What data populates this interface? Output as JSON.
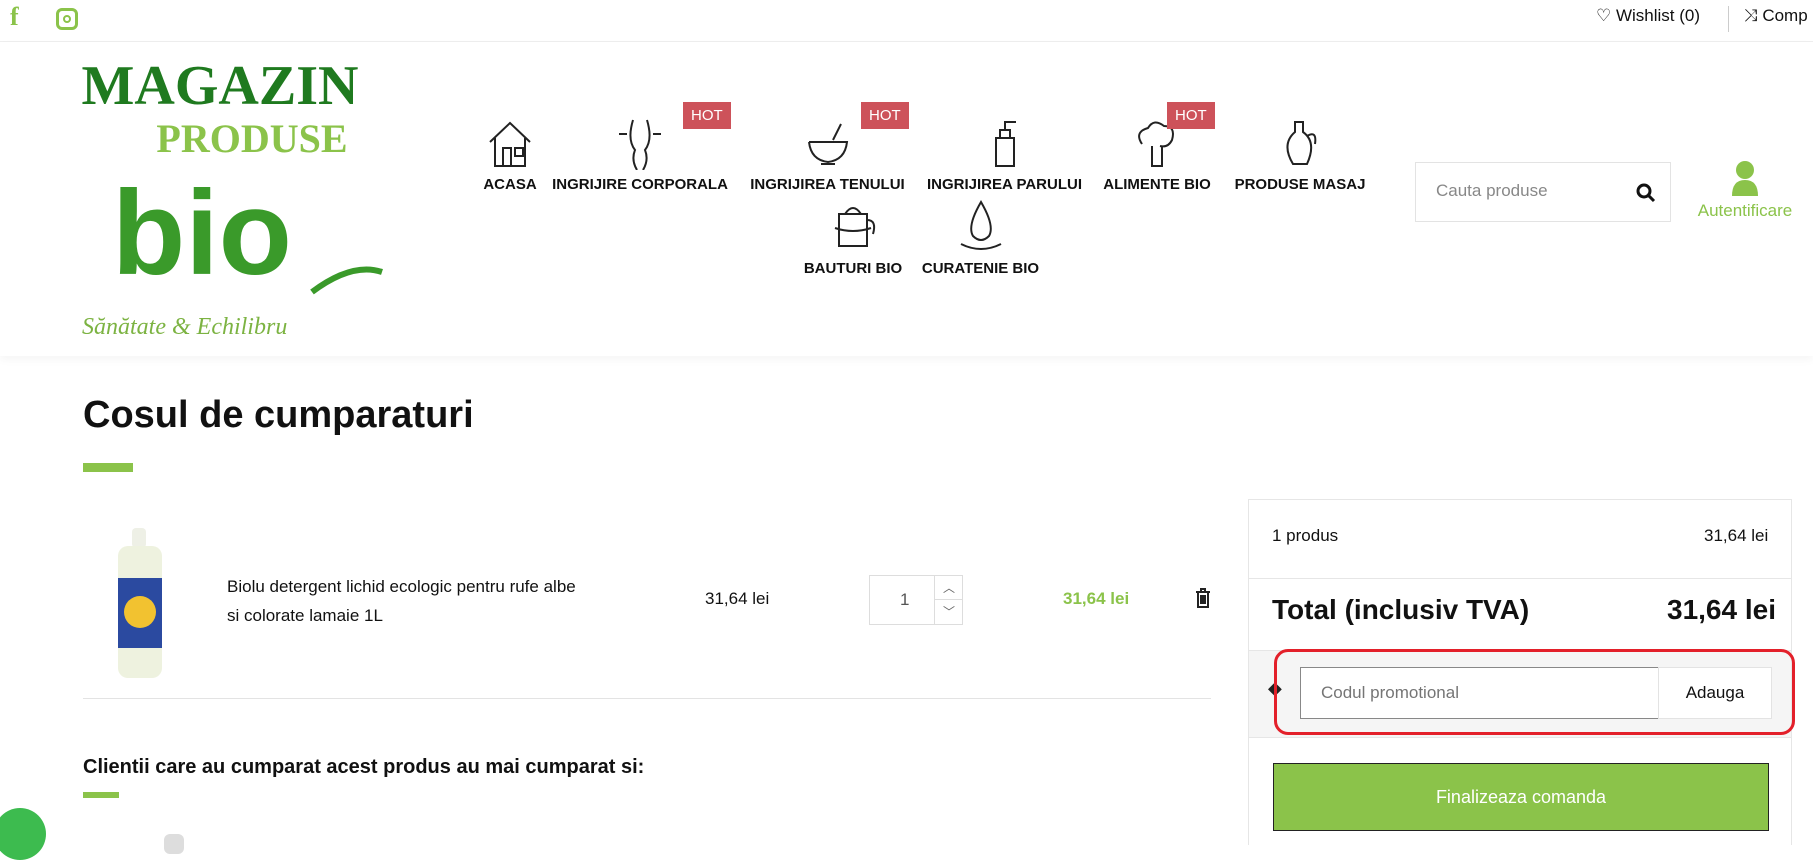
{
  "topbar": {
    "wishlist": "Wishlist (0)",
    "compare": "Comp",
    "icons": [
      "facebook-icon",
      "instagram-icon",
      "heart-icon",
      "shuffle-icon"
    ]
  },
  "logo": {
    "line1": "MAGAZIN",
    "line2": "PRODUSE",
    "line3": "bio",
    "tagline": "Sănătate & Echilibru"
  },
  "nav": [
    {
      "label": "ACASA",
      "icon": "house-icon"
    },
    {
      "label": "INGRIJIRE CORPORALA",
      "icon": "waist-icon",
      "badge": "HOT"
    },
    {
      "label": "INGRIJIREA TENULUI",
      "icon": "mortar-icon",
      "badge": "HOT"
    },
    {
      "label": "INGRIJIREA PARULUI",
      "icon": "soap-bottle-icon"
    },
    {
      "label": "ALIMENTE BIO",
      "icon": "broccoli-icon",
      "badge": "HOT"
    },
    {
      "label": "PRODUSE MASAJ",
      "icon": "oil-jug-icon"
    },
    {
      "label": "BAUTURI BIO",
      "icon": "teapot-icon"
    },
    {
      "label": "CURATENIE BIO",
      "icon": "water-drop-icon"
    }
  ],
  "search": {
    "placeholder": "Cauta produse"
  },
  "account": {
    "label": "Autentificare"
  },
  "cart": {
    "title": "Cosul de cumparaturi",
    "items": [
      {
        "name_line1": "Biolu detergent lichid ecologic pentru rufe albe",
        "name_line2": "si colorate lamaie 1L",
        "price": "31,64 lei",
        "quantity": "1",
        "total": "31,64 lei"
      }
    ],
    "related_title": "Clientii care au cumparat acest produs au mai cumparat si:"
  },
  "summary": {
    "count_label": "1 produs",
    "subtotal": "31,64 lei",
    "total_label": "Total (inclusiv TVA)",
    "total": "31,64 lei",
    "promo_placeholder": "Codul promotional",
    "promo_button": "Adauga",
    "checkout": "Finalizeaza comanda"
  },
  "colors": {
    "accent": "#8bc34a",
    "hot": "#cd525a",
    "highlight": "#e3202a"
  }
}
